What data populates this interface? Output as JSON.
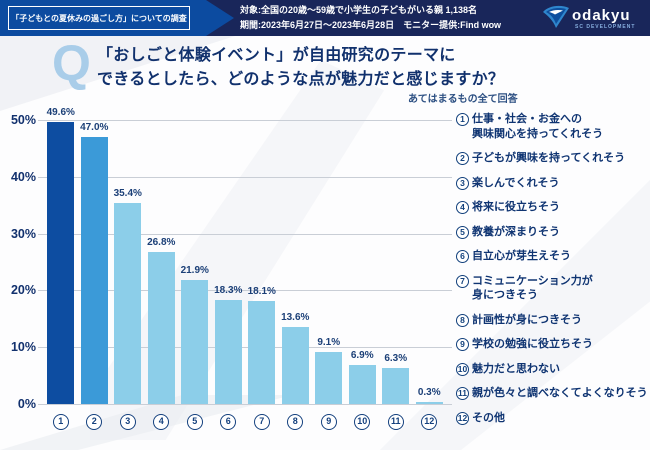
{
  "header": {
    "banner_title": "「子どもとの夏休みの過ごし方」についての調査",
    "stats": [
      "対象:全国の20歳〜59歳で小学生の子どもがいる親 1,138名",
      "期間:2023年6月27日〜2023年6月28日　モニター提供:Find wow"
    ],
    "logo": {
      "name": "odakyu",
      "sub": "SC DEVELOPMENT"
    }
  },
  "question": {
    "mark": "Q",
    "line1": "「おしごと体験イベント」が自由研究のテーマに",
    "line2": "できるとしたら、どのような点が魅力だと感じますか？",
    "note": "あてはまるもの全て回答"
  },
  "chart_data": {
    "type": "bar",
    "title": "「おしごと体験イベント」が自由研究のテーマにできるとしたら、どのような点が魅力だと感じますか？",
    "subtitle": "あてはまるもの全て回答",
    "categories": [
      "1",
      "2",
      "3",
      "4",
      "5",
      "6",
      "7",
      "8",
      "9",
      "10",
      "11",
      "12"
    ],
    "values": [
      49.6,
      47.0,
      35.4,
      26.8,
      21.9,
      18.3,
      18.1,
      13.6,
      9.1,
      6.9,
      6.3,
      0.3
    ],
    "value_labels": [
      "49.6%",
      "47.0%",
      "35.4%",
      "26.8%",
      "21.9%",
      "18.3%",
      "18.1%",
      "13.6%",
      "9.1%",
      "6.9%",
      "6.3%",
      "0.3%"
    ],
    "xlabel": "",
    "ylabel": "",
    "ylim": [
      0,
      50
    ],
    "y_ticks": [
      0,
      10,
      20,
      30,
      40,
      50
    ],
    "y_tick_labels": [
      "0%",
      "10%",
      "20%",
      "30%",
      "40%",
      "50%"
    ],
    "grid": true,
    "legend_position": "right",
    "bar_colors": [
      "#0d4da1",
      "#3b9ad8",
      "#8ccee9",
      "#8ccee9",
      "#8ccee9",
      "#8ccee9",
      "#8ccee9",
      "#8ccee9",
      "#8ccee9",
      "#8ccee9",
      "#8ccee9",
      "#8ccee9"
    ],
    "legend": [
      {
        "num": "1",
        "text": "仕事・社会・お金への\n興味関心を持ってくれそう"
      },
      {
        "num": "2",
        "text": "子どもが興味を持ってくれそう"
      },
      {
        "num": "3",
        "text": "楽しんでくれそう"
      },
      {
        "num": "4",
        "text": "将来に役立ちそう"
      },
      {
        "num": "5",
        "text": "教養が深まりそう"
      },
      {
        "num": "6",
        "text": "自立心が芽生えそう"
      },
      {
        "num": "7",
        "text": "コミュニケーション力が\n身につきそう"
      },
      {
        "num": "8",
        "text": "計画性が身につきそう"
      },
      {
        "num": "9",
        "text": "学校の勉強に役立ちそう"
      },
      {
        "num": "10",
        "text": "魅力だと思わない"
      },
      {
        "num": "11",
        "text": "親が色々と調べなくてよくなりそう"
      },
      {
        "num": "12",
        "text": "その他"
      }
    ]
  }
}
